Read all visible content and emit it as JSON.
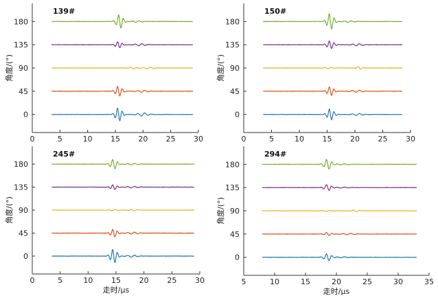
{
  "chart_data": [
    {
      "type": "line",
      "panel_label": "139#",
      "ylabel": "角度/(°)",
      "xlabel": "",
      "xlim": [
        0,
        30
      ],
      "xticks": [
        0,
        5,
        10,
        15,
        20,
        25,
        30
      ],
      "ylim": [
        -35,
        215
      ],
      "yticks": [
        0,
        45,
        90,
        135,
        180
      ],
      "x_range": [
        3.5,
        29
      ],
      "series": [
        {
          "offset": 0,
          "color": "#1f77b4",
          "burst_center": 15.6,
          "amplitude": 13,
          "freq": 1.15,
          "tail": 20,
          "tail_amp": 3
        },
        {
          "offset": 45,
          "color": "#d9541a",
          "burst_center": 15.6,
          "amplitude": 10,
          "freq": 1.15,
          "tail": 20,
          "tail_amp": 2
        },
        {
          "offset": 90,
          "color": "#edb120",
          "burst_center": 18.0,
          "amplitude": 1.8,
          "freq": 0.9,
          "tail": 21,
          "tail_amp": 1.8
        },
        {
          "offset": 135,
          "color": "#7e2f8e",
          "burst_center": 15.6,
          "amplitude": 6,
          "freq": 1.15,
          "tail": 19.5,
          "tail_amp": 2
        },
        {
          "offset": 180,
          "color": "#77ac30",
          "burst_center": 15.8,
          "amplitude": 14,
          "freq": 1.1,
          "tail": 19,
          "tail_amp": 1.5
        }
      ]
    },
    {
      "type": "line",
      "panel_label": "150#",
      "ylabel": "角度/(°)",
      "xlabel": "",
      "xlim": [
        0,
        30
      ],
      "xticks": [
        0,
        5,
        10,
        15,
        20,
        25,
        30
      ],
      "ylim": [
        -35,
        215
      ],
      "yticks": [
        0,
        45,
        90,
        135,
        180
      ],
      "x_range": [
        3.5,
        28.5
      ],
      "series": [
        {
          "offset": 0,
          "color": "#1f77b4",
          "burst_center": 15.6,
          "amplitude": 11,
          "freq": 1.15,
          "tail": 20.5,
          "tail_amp": 2
        },
        {
          "offset": 45,
          "color": "#d9541a",
          "burst_center": 15.6,
          "amplitude": 9,
          "freq": 1.15,
          "tail": 20.5,
          "tail_amp": 2
        },
        {
          "offset": 90,
          "color": "#edb120",
          "burst_center": 20.8,
          "amplitude": 2.5,
          "freq": 0.9,
          "tail": 15.5,
          "tail_amp": 1
        },
        {
          "offset": 135,
          "color": "#7e2f8e",
          "burst_center": 15.6,
          "amplitude": 8,
          "freq": 1.15,
          "tail": 20.5,
          "tail_amp": 2
        },
        {
          "offset": 180,
          "color": "#77ac30",
          "burst_center": 15.6,
          "amplitude": 16,
          "freq": 1.1,
          "tail": 19,
          "tail_amp": 1.5
        }
      ]
    },
    {
      "type": "line",
      "panel_label": "245#",
      "ylabel": "角度/(°)",
      "xlabel": "走时/μs",
      "xlim": [
        0,
        30
      ],
      "xticks": [
        0,
        5,
        10,
        15,
        20,
        25,
        30
      ],
      "ylim": [
        -35,
        215
      ],
      "yticks": [
        0,
        45,
        90,
        135,
        180
      ],
      "x_range": [
        3.5,
        29
      ],
      "series": [
        {
          "offset": 0,
          "color": "#1f77b4",
          "burst_center": 14.6,
          "amplitude": 14,
          "freq": 1.15,
          "tail": 18,
          "tail_amp": 2
        },
        {
          "offset": 45,
          "color": "#d9541a",
          "burst_center": 14.6,
          "amplitude": 8,
          "freq": 1.15,
          "tail": 18,
          "tail_amp": 2
        },
        {
          "offset": 90,
          "color": "#edb120",
          "burst_center": 18.0,
          "amplitude": 2,
          "freq": 0.9,
          "tail": 14.6,
          "tail_amp": 1
        },
        {
          "offset": 135,
          "color": "#7e2f8e",
          "burst_center": 14.6,
          "amplitude": 5,
          "freq": 1.15,
          "tail": 18,
          "tail_amp": 1.5
        },
        {
          "offset": 180,
          "color": "#77ac30",
          "burst_center": 14.6,
          "amplitude": 10,
          "freq": 1.1,
          "tail": 18,
          "tail_amp": 1.5
        }
      ]
    },
    {
      "type": "line",
      "panel_label": "294#",
      "ylabel": "角度/(°)",
      "xlabel": "走时/μs",
      "xlim": [
        5,
        35
      ],
      "xticks": [
        5,
        10,
        15,
        20,
        25,
        30,
        35
      ],
      "ylim": [
        -35,
        215
      ],
      "yticks": [
        0,
        45,
        90,
        135,
        180
      ],
      "x_range": [
        8,
        33
      ],
      "series": [
        {
          "offset": 0,
          "color": "#1f77b4",
          "burst_center": 18.6,
          "amplitude": 7,
          "freq": 1.1,
          "tail": 21,
          "tail_amp": 1
        },
        {
          "offset": 45,
          "color": "#d9541a",
          "burst_center": 18.6,
          "amplitude": 3,
          "freq": 1.1,
          "tail": 22,
          "tail_amp": 1.5
        },
        {
          "offset": 90,
          "color": "#edb120",
          "burst_center": 23.0,
          "amplitude": 2,
          "freq": 0.9,
          "tail": 18.6,
          "tail_amp": 1
        },
        {
          "offset": 135,
          "color": "#7e2f8e",
          "burst_center": 18.6,
          "amplitude": 6,
          "freq": 1.1,
          "tail": 21,
          "tail_amp": 1
        },
        {
          "offset": 180,
          "color": "#77ac30",
          "burst_center": 18.6,
          "amplitude": 10,
          "freq": 1.1,
          "tail": 21,
          "tail_amp": 1
        }
      ]
    }
  ]
}
